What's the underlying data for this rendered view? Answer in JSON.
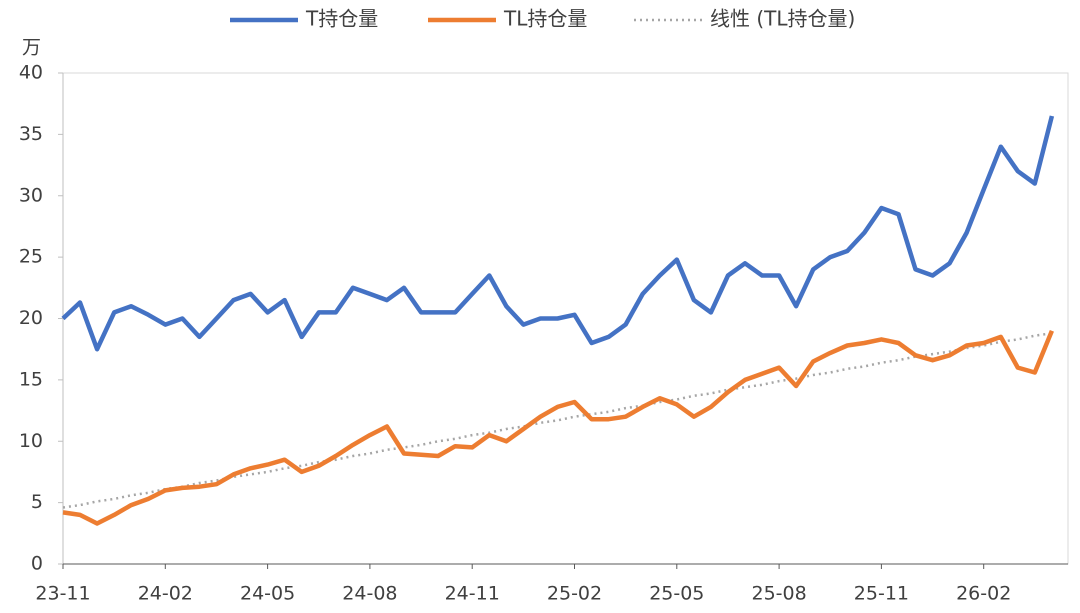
{
  "chart_data": {
    "type": "line",
    "y_unit": "万",
    "categories": [
      "23-11",
      null,
      null,
      null,
      null,
      null,
      "24-02",
      null,
      null,
      null,
      null,
      null,
      "24-05",
      null,
      null,
      null,
      null,
      null,
      "24-08",
      null,
      null,
      null,
      null,
      null,
      "24-11",
      null,
      null,
      null,
      null,
      null,
      "25-02",
      null,
      null,
      null,
      null,
      null,
      "25-05",
      null,
      null,
      null,
      null,
      null,
      "25-08",
      null,
      null,
      null,
      null,
      null,
      "25-11",
      null,
      null,
      null,
      null,
      null,
      "26-02",
      null,
      null,
      null,
      null
    ],
    "series": [
      {
        "name": "T持仓量",
        "color": "#4472c4",
        "style": "solid",
        "values": [
          20,
          21.3,
          17.5,
          20.5,
          21,
          20.3,
          19.5,
          20,
          18.5,
          20,
          21.5,
          22,
          20.5,
          21.5,
          18.5,
          20.5,
          20.5,
          22.5,
          22,
          21.5,
          22.5,
          20.5,
          20.5,
          20.5,
          22,
          23.5,
          21,
          19.5,
          20,
          20,
          20.3,
          18,
          18.5,
          19.5,
          22,
          23.5,
          24.8,
          21.5,
          20.5,
          23.5,
          24.5,
          23.5,
          23.5,
          21,
          24,
          25,
          25.5,
          27,
          29,
          28.5,
          24,
          23.5,
          24.5,
          27,
          30.5,
          34,
          32,
          31,
          36.5
        ]
      },
      {
        "name": "TL持仓量",
        "color": "#ed7d31",
        "style": "solid",
        "values": [
          4.2,
          4.0,
          3.3,
          4.0,
          4.8,
          5.3,
          6.0,
          6.2,
          6.3,
          6.5,
          7.3,
          7.8,
          8.1,
          8.5,
          7.5,
          8.0,
          8.8,
          9.7,
          10.5,
          11.2,
          9.0,
          8.9,
          8.8,
          9.6,
          9.5,
          10.5,
          10.0,
          11.0,
          12.0,
          12.8,
          13.2,
          11.8,
          11.8,
          12.0,
          12.8,
          13.5,
          13.0,
          12.0,
          12.8,
          14.0,
          15.0,
          15.5,
          16.0,
          14.5,
          16.5,
          17.2,
          17.8,
          18.0,
          18.3,
          18.0,
          17.0,
          16.6,
          17.0,
          17.8,
          18.0,
          18.5,
          16.0,
          15.6,
          19.0
        ]
      },
      {
        "name": "线性 (TL持仓量)",
        "color": "#a6a6a6",
        "style": "dotted",
        "values": [
          4.6,
          4.8,
          5.1,
          5.3,
          5.6,
          5.8,
          6.1,
          6.3,
          6.6,
          6.8,
          7.1,
          7.3,
          7.5,
          7.8,
          8.0,
          8.3,
          8.5,
          8.8,
          9.0,
          9.3,
          9.5,
          9.7,
          10.0,
          10.2,
          10.5,
          10.7,
          11.0,
          11.2,
          11.5,
          11.7,
          12.0,
          12.2,
          12.4,
          12.7,
          12.9,
          13.2,
          13.4,
          13.7,
          13.9,
          14.2,
          14.4,
          14.6,
          14.9,
          15.1,
          15.4,
          15.6,
          15.9,
          16.1,
          16.4,
          16.6,
          16.9,
          17.1,
          17.3,
          17.6,
          17.8,
          18.1,
          18.3,
          18.6,
          18.8
        ]
      }
    ],
    "ylim": [
      0,
      40
    ],
    "yticks": [
      0,
      5,
      10,
      15,
      20,
      25,
      30,
      35,
      40
    ],
    "grid": false,
    "legend": "top"
  }
}
